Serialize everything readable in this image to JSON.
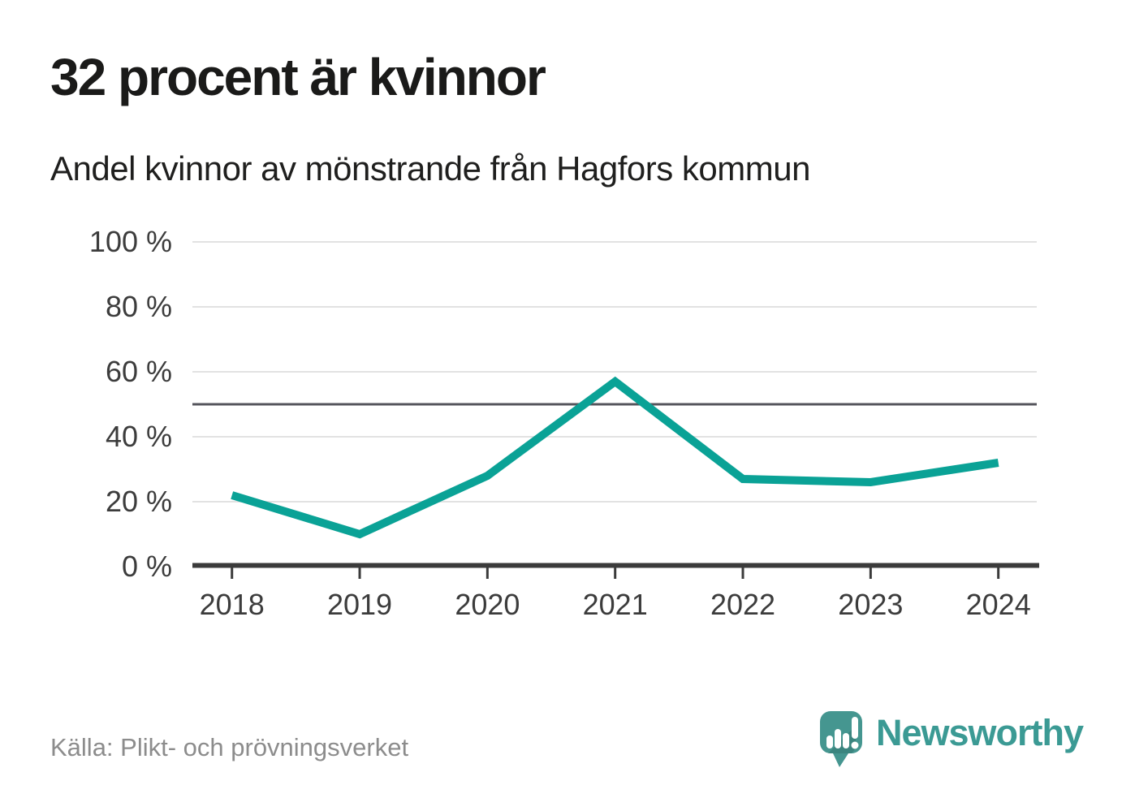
{
  "header": {
    "title": "32 procent är kvinnor",
    "subtitle": "Andel kvinnor av mönstrande från Hagfors kommun"
  },
  "chart_data": {
    "type": "line",
    "title": "32 procent är kvinnor",
    "subtitle": "Andel kvinnor av mönstrande från Hagfors kommun",
    "x": [
      "2018",
      "2019",
      "2020",
      "2021",
      "2022",
      "2023",
      "2024"
    ],
    "series": [
      {
        "name": "Andel kvinnor av mönstrande",
        "values": [
          22,
          10,
          28,
          57,
          27,
          26,
          32
        ],
        "color": "#0aa296"
      }
    ],
    "unit": "%",
    "ylim": [
      0,
      100
    ],
    "yticks": [
      0,
      20,
      40,
      60,
      80,
      100
    ],
    "ytick_labels": [
      "0 %",
      "20 %",
      "40 %",
      "60 %",
      "80 %",
      "100 %"
    ],
    "reference_line": {
      "value": 50,
      "color": "#55555c"
    },
    "grid": "horizontal",
    "legend": "none"
  },
  "footer": {
    "source": "Källa: Plikt- och prövningsverket",
    "brand": "Newsworthy",
    "icon": "newsworthy-speech-bubble-chart-icon",
    "brand_color": "#3b9a94"
  },
  "colors": {
    "line": "#0aa296",
    "axis": "#3b3b3b",
    "grid": "#e2e2e2",
    "reference": "#55555c",
    "title_text": "#1a1a19",
    "muted_text": "#8c8c8c",
    "logo_bubble": "#459690",
    "logo_shadow": "rgba(15,55,52,0.18)"
  }
}
